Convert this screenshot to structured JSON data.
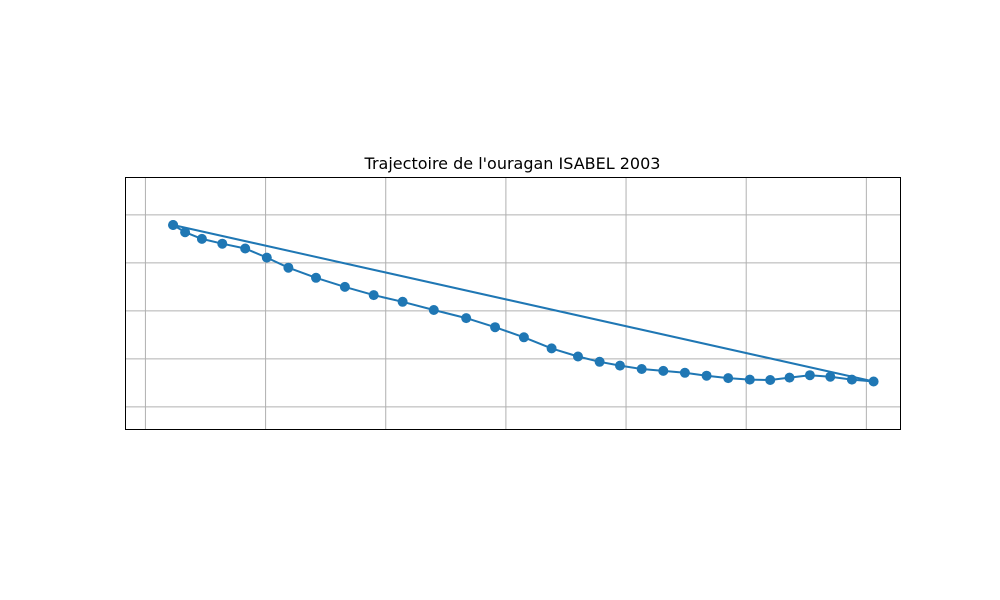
{
  "chart_data": {
    "type": "line",
    "title": "Trajectoire de l'ouragan ISABEL 2003",
    "xlabel": "",
    "ylabel": "",
    "x_ticks_shown": false,
    "y_ticks_shown": false,
    "grid": true,
    "marker": "circle",
    "closed_path": true,
    "color": "#1f77b4",
    "grid_color": "#b0b0b0",
    "xlim": [
      0,
      6.45
    ],
    "ylim": [
      0,
      5.25
    ],
    "x_gridlines": [
      0.17,
      1.17,
      2.17,
      3.17,
      4.17,
      5.17,
      6.17
    ],
    "y_gridlines": [
      0.46,
      1.46,
      2.46,
      3.46,
      4.46
    ],
    "series": [
      {
        "x": [
          0.4,
          0.5,
          0.64,
          0.81,
          1.0,
          1.18,
          1.36,
          1.59,
          1.83,
          2.07,
          2.31,
          2.57,
          2.84,
          3.08,
          3.32,
          3.55,
          3.77,
          3.95,
          4.12,
          4.3,
          4.48,
          4.66,
          4.84,
          5.02,
          5.2,
          5.37,
          5.53,
          5.7,
          5.87,
          6.05,
          6.23,
          0.4
        ],
        "y": [
          4.25,
          4.1,
          3.96,
          3.86,
          3.76,
          3.57,
          3.36,
          3.15,
          2.96,
          2.79,
          2.65,
          2.48,
          2.31,
          2.12,
          1.91,
          1.68,
          1.51,
          1.4,
          1.32,
          1.25,
          1.21,
          1.17,
          1.11,
          1.06,
          1.03,
          1.02,
          1.07,
          1.12,
          1.09,
          1.03,
          0.99,
          4.25
        ]
      }
    ]
  }
}
